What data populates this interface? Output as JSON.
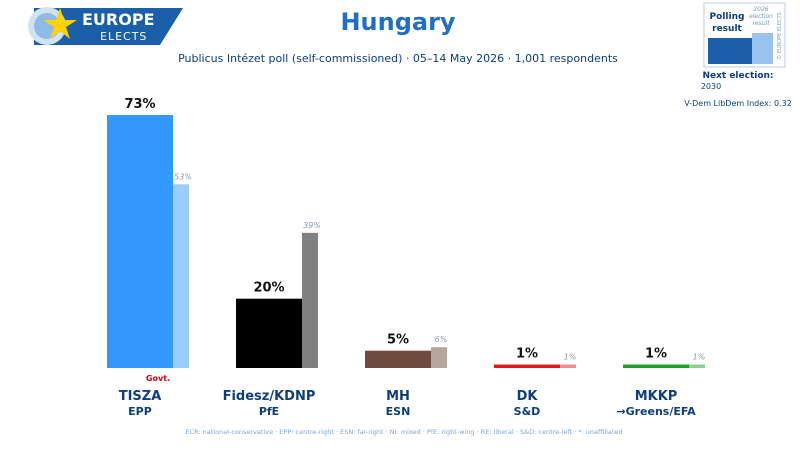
{
  "header": {
    "brand_line1": "EUROPE",
    "brand_line2": "ELECTS",
    "title": "Hungary",
    "subtitle": "Publicus Intézet poll (self-commissioned) · 05–14 May 2026 · 1,001 respondents"
  },
  "legend_box": {
    "polling_label_1": "Polling",
    "polling_label_2": "result",
    "election_label_1": "2026",
    "election_label_2": "election",
    "election_label_3": "result",
    "vertical_credit": "© EUROPE ELECTS"
  },
  "next_election_label": "Next election:",
  "next_election_value": "2030",
  "vdem_label": "V-Dem LibDem Index: 0.32",
  "govt_marker": "Govt.",
  "footnote": "ECR: national-conservative · EPP: centre-right · ESN: far-right · NI: mixed · PfE: right-wing · RE: liberal · S&D: centre-left · *: unaffiliated",
  "colors": {
    "title": "#1f6fc3",
    "brand_bg": "#1a5fa8",
    "text_dark": "#0e3f7a",
    "govt": "#cc0000"
  },
  "chart_data": {
    "type": "bar",
    "ylim": [
      0,
      73
    ],
    "categories": [
      "TISZA",
      "Fidesz/KDNP",
      "MH",
      "DK",
      "MKKP"
    ],
    "groups": [
      "EPP",
      "PfE",
      "ESN",
      "S&D",
      "→Greens/EFA"
    ],
    "series": [
      {
        "values": [
          73,
          20,
          5,
          1,
          1
        ],
        "labels": [
          "73%",
          "20%",
          "5%",
          "1%",
          "1%"
        ],
        "colors": [
          "#3399ff",
          "#000000",
          "#6e4c3e",
          "#e0191f",
          "#1a9e2c"
        ]
      },
      {
        "values": [
          53,
          39,
          6,
          1,
          1
        ],
        "labels": [
          "53%",
          "39%",
          "6%",
          "1%",
          "1%"
        ],
        "colors": [
          "#99ccff",
          "#808080",
          "#b7a59e",
          "#f08c8f",
          "#8ccf95"
        ]
      }
    ]
  }
}
